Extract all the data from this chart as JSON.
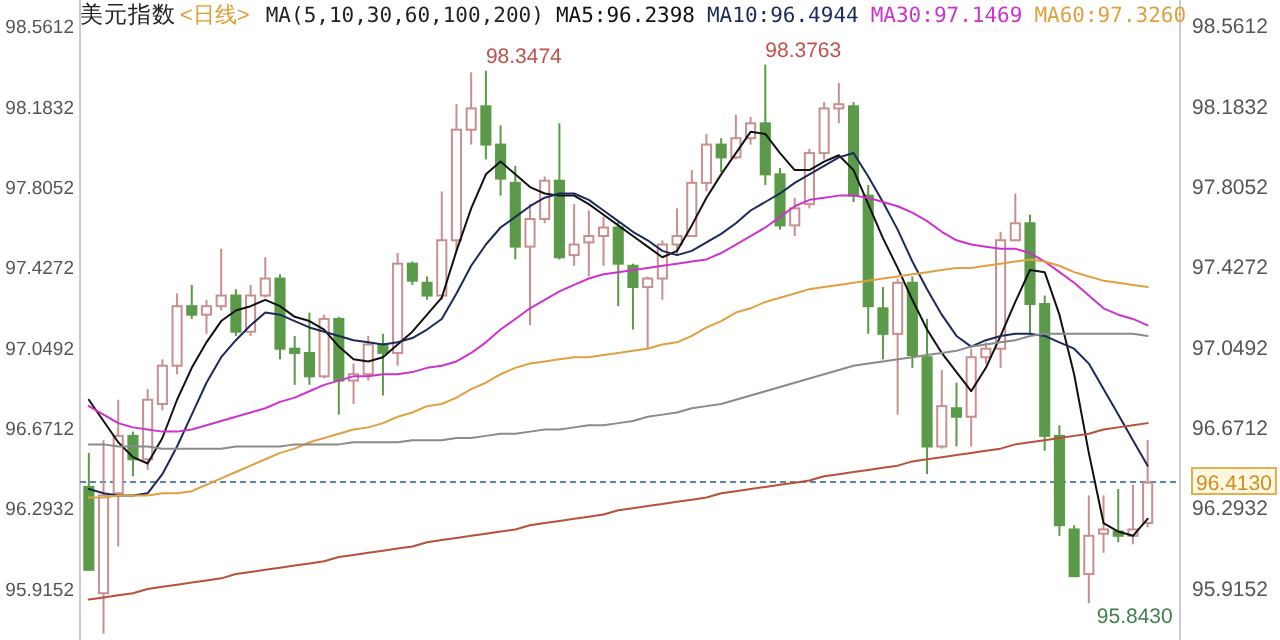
{
  "chart_data": {
    "type": "candlestick",
    "title": "美元指数",
    "subtitle": "<日线>",
    "categories": [
      null,
      null,
      null,
      null,
      null,
      null,
      null,
      null,
      null,
      null,
      null,
      null,
      null,
      null,
      null,
      null,
      null,
      null,
      null,
      null,
      null,
      null,
      null,
      null,
      null,
      null,
      null,
      null,
      null,
      null,
      null,
      null,
      null,
      null,
      null,
      null,
      null,
      null,
      null,
      null,
      null,
      null,
      null,
      null,
      null,
      null,
      null,
      null,
      null,
      null,
      null,
      null,
      null,
      null,
      null,
      null,
      null,
      null,
      null,
      null,
      null,
      null,
      null,
      null,
      null,
      null,
      null,
      null,
      null,
      null,
      null,
      null,
      null
    ],
    "ohlc": [
      [
        96.39,
        96.55,
        96.0,
        96.0
      ],
      [
        95.89,
        96.61,
        95.7,
        96.35
      ],
      [
        96.36,
        96.8,
        96.11,
        96.63
      ],
      [
        96.63,
        96.65,
        96.44,
        96.52
      ],
      [
        96.52,
        96.85,
        96.47,
        96.8
      ],
      [
        96.78,
        96.99,
        96.75,
        96.96
      ],
      [
        96.96,
        97.3,
        96.92,
        97.24
      ],
      [
        97.24,
        97.34,
        97.18,
        97.2
      ],
      [
        97.2,
        97.27,
        97.11,
        97.24
      ],
      [
        97.24,
        97.51,
        97.22,
        97.29
      ],
      [
        97.29,
        97.32,
        97.1,
        97.12
      ],
      [
        97.12,
        97.34,
        97.1,
        97.29
      ],
      [
        97.29,
        97.47,
        97.28,
        97.37
      ],
      [
        97.37,
        97.39,
        96.99,
        97.04
      ],
      [
        97.04,
        97.1,
        96.87,
        97.02
      ],
      [
        97.02,
        97.21,
        96.87,
        96.91
      ],
      [
        96.91,
        97.2,
        96.9,
        97.18
      ],
      [
        97.18,
        97.19,
        96.73,
        96.89
      ],
      [
        96.89,
        96.97,
        96.78,
        96.92
      ],
      [
        96.92,
        97.1,
        96.89,
        97.06
      ],
      [
        97.06,
        97.11,
        96.82,
        97.02
      ],
      [
        97.02,
        97.49,
        96.96,
        97.44
      ],
      [
        97.44,
        97.45,
        97.34,
        97.36
      ],
      [
        97.35,
        97.38,
        97.27,
        97.29
      ],
      [
        97.29,
        97.78,
        97.27,
        97.55
      ],
      [
        97.55,
        98.19,
        97.5,
        98.07
      ],
      [
        98.07,
        98.34,
        98.0,
        98.17
      ],
      [
        98.18,
        98.3474,
        97.93,
        98.0
      ],
      [
        98.0,
        98.09,
        97.76,
        97.84
      ],
      [
        97.82,
        97.9,
        97.46,
        97.52
      ],
      [
        97.52,
        97.72,
        97.15,
        97.65
      ],
      [
        97.65,
        97.85,
        97.63,
        97.83
      ],
      [
        97.83,
        98.1,
        97.46,
        97.47
      ],
      [
        97.48,
        97.72,
        97.43,
        97.53
      ],
      [
        97.54,
        97.69,
        97.38,
        97.57
      ],
      [
        97.57,
        97.66,
        97.43,
        97.61
      ],
      [
        97.61,
        97.64,
        97.24,
        97.44
      ],
      [
        97.43,
        97.44,
        97.13,
        97.33
      ],
      [
        97.33,
        97.38,
        97.04,
        97.37
      ],
      [
        97.37,
        97.55,
        97.27,
        97.53
      ],
      [
        97.53,
        97.7,
        97.48,
        97.57
      ],
      [
        97.57,
        97.88,
        97.57,
        97.82
      ],
      [
        97.82,
        98.05,
        97.78,
        98.0
      ],
      [
        98.0,
        98.03,
        97.87,
        97.94
      ],
      [
        97.94,
        98.14,
        97.93,
        98.03
      ],
      [
        98.03,
        98.13,
        98.0,
        98.1
      ],
      [
        98.1,
        98.3763,
        97.81,
        97.86
      ],
      [
        97.86,
        97.89,
        97.6,
        97.62
      ],
      [
        97.62,
        97.75,
        97.57,
        97.7
      ],
      [
        97.72,
        97.98,
        97.7,
        97.96
      ],
      [
        97.96,
        98.2,
        97.93,
        98.17
      ],
      [
        98.17,
        98.29,
        98.1,
        98.19
      ],
      [
        98.18,
        98.2,
        97.73,
        97.76
      ],
      [
        97.76,
        97.81,
        97.11,
        97.24
      ],
      [
        97.23,
        97.33,
        96.99,
        97.11
      ],
      [
        97.11,
        97.37,
        96.73,
        97.35
      ],
      [
        97.35,
        97.38,
        96.95,
        97.01
      ],
      [
        97.0,
        97.18,
        96.45,
        96.58
      ],
      [
        96.58,
        96.94,
        96.57,
        96.77
      ],
      [
        96.76,
        96.88,
        96.58,
        96.72
      ],
      [
        96.72,
        97.04,
        96.58,
        97.0
      ],
      [
        97.0,
        97.07,
        96.97,
        97.04
      ],
      [
        97.04,
        97.59,
        96.95,
        97.55
      ],
      [
        97.55,
        97.77,
        97.55,
        97.63
      ],
      [
        97.63,
        97.67,
        97.11,
        97.25
      ],
      [
        97.25,
        97.29,
        96.56,
        96.63
      ],
      [
        96.63,
        96.68,
        96.16,
        96.21
      ],
      [
        96.19,
        96.21,
        95.97,
        95.97
      ],
      [
        95.98,
        96.35,
        95.843,
        96.16
      ],
      [
        96.17,
        96.35,
        96.08,
        96.19
      ],
      [
        96.18,
        96.38,
        96.13,
        96.16
      ],
      [
        96.16,
        96.4,
        96.12,
        96.19
      ],
      [
        96.22,
        96.61,
        96.2,
        96.41
      ]
    ],
    "series": [
      {
        "name": "MA5:96.2398",
        "type": "line",
        "color": "#111111",
        "values": [
          96.8,
          96.7,
          96.6,
          96.53,
          96.5,
          96.62,
          96.8,
          96.95,
          97.07,
          97.17,
          97.22,
          97.24,
          97.27,
          97.24,
          97.19,
          97.17,
          97.13,
          97.05,
          96.99,
          96.98,
          97.0,
          97.06,
          97.12,
          97.2,
          97.28,
          97.5,
          97.7,
          97.86,
          97.92,
          97.86,
          97.8,
          97.77,
          97.76,
          97.76,
          97.72,
          97.67,
          97.62,
          97.57,
          97.52,
          97.47,
          97.5,
          97.62,
          97.75,
          97.86,
          97.96,
          98.06,
          98.05,
          97.96,
          97.88,
          97.88,
          97.92,
          97.95,
          97.88,
          97.72,
          97.56,
          97.42,
          97.27,
          97.13,
          97.02,
          96.93,
          96.84,
          96.95,
          97.1,
          97.26,
          97.41,
          97.4,
          97.2,
          96.92,
          96.55,
          96.22,
          96.18,
          96.16,
          96.24
        ]
      },
      {
        "name": "MA10:96.4944",
        "type": "line",
        "color": "#1c2a5a",
        "values": [
          96.38,
          96.36,
          96.35,
          96.35,
          96.36,
          96.45,
          96.58,
          96.73,
          96.88,
          97.0,
          97.08,
          97.15,
          97.21,
          97.2,
          97.17,
          97.14,
          97.12,
          97.1,
          97.08,
          97.07,
          97.06,
          97.07,
          97.09,
          97.13,
          97.18,
          97.3,
          97.43,
          97.53,
          97.61,
          97.66,
          97.71,
          97.75,
          97.77,
          97.77,
          97.74,
          97.69,
          97.64,
          97.59,
          97.55,
          97.5,
          97.48,
          97.5,
          97.54,
          97.58,
          97.63,
          97.69,
          97.73,
          97.77,
          97.82,
          97.86,
          97.9,
          97.94,
          97.96,
          97.85,
          97.73,
          97.6,
          97.45,
          97.32,
          97.2,
          97.1,
          97.05,
          97.08,
          97.1,
          97.11,
          97.11,
          97.1,
          97.07,
          97.04,
          96.97,
          96.85,
          96.73,
          96.61,
          96.49
        ]
      },
      {
        "name": "MA30:97.1469",
        "type": "line",
        "color": "#cc33cc",
        "values": [
          96.77,
          96.73,
          96.69,
          96.67,
          96.66,
          96.65,
          96.65,
          96.66,
          96.68,
          96.7,
          96.72,
          96.74,
          96.76,
          96.79,
          96.81,
          96.84,
          96.87,
          96.89,
          96.91,
          96.91,
          96.92,
          96.92,
          96.93,
          96.95,
          96.96,
          96.98,
          97.02,
          97.07,
          97.13,
          97.18,
          97.23,
          97.27,
          97.31,
          97.34,
          97.37,
          97.39,
          97.4,
          97.41,
          97.42,
          97.43,
          97.44,
          97.45,
          97.46,
          97.49,
          97.53,
          97.57,
          97.61,
          97.66,
          97.71,
          97.74,
          97.75,
          97.76,
          97.76,
          97.75,
          97.73,
          97.71,
          97.68,
          97.64,
          97.59,
          97.55,
          97.53,
          97.52,
          97.51,
          97.51,
          97.49,
          97.45,
          97.4,
          97.35,
          97.29,
          97.23,
          97.2,
          97.18,
          97.15
        ]
      },
      {
        "name": "MA60:97.3260",
        "type": "line",
        "color": "#e0a040",
        "values": [
          96.34,
          96.34,
          96.35,
          96.35,
          96.35,
          96.36,
          96.36,
          96.37,
          96.4,
          96.43,
          96.46,
          96.49,
          96.52,
          96.55,
          96.57,
          96.6,
          96.62,
          96.64,
          96.66,
          96.67,
          96.69,
          96.72,
          96.74,
          96.77,
          96.78,
          96.81,
          96.85,
          96.88,
          96.92,
          96.95,
          96.97,
          96.98,
          96.99,
          97.0,
          97.0,
          97.01,
          97.02,
          97.03,
          97.04,
          97.06,
          97.07,
          97.1,
          97.14,
          97.17,
          97.21,
          97.23,
          97.26,
          97.28,
          97.3,
          97.32,
          97.33,
          97.34,
          97.35,
          97.36,
          97.37,
          97.38,
          97.39,
          97.4,
          97.41,
          97.42,
          97.42,
          97.43,
          97.44,
          97.45,
          97.46,
          97.45,
          97.43,
          97.4,
          97.38,
          97.36,
          97.35,
          97.34,
          97.33
        ]
      },
      {
        "type": "line",
        "color": "#8a8a8a",
        "values": [
          96.59,
          96.59,
          96.58,
          96.58,
          96.58,
          96.57,
          96.57,
          96.57,
          96.57,
          96.57,
          96.58,
          96.58,
          96.58,
          96.58,
          96.59,
          96.59,
          96.59,
          96.59,
          96.6,
          96.6,
          96.6,
          96.6,
          96.61,
          96.61,
          96.61,
          96.62,
          96.62,
          96.63,
          96.64,
          96.64,
          96.65,
          96.66,
          96.66,
          96.67,
          96.68,
          96.68,
          96.69,
          96.7,
          96.72,
          96.73,
          96.74,
          96.76,
          96.77,
          96.78,
          96.8,
          96.82,
          96.84,
          96.86,
          96.88,
          96.9,
          96.92,
          96.94,
          96.96,
          96.97,
          96.98,
          96.99,
          97.0,
          97.01,
          97.02,
          97.03,
          97.05,
          97.06,
          97.07,
          97.08,
          97.1,
          97.11,
          97.11,
          97.11,
          97.11,
          97.11,
          97.11,
          97.11,
          97.1
        ]
      },
      {
        "type": "line",
        "color": "#b8503a",
        "values": [
          95.86,
          95.87,
          95.88,
          95.89,
          95.91,
          95.92,
          95.93,
          95.94,
          95.95,
          95.96,
          95.98,
          95.99,
          96.0,
          96.01,
          96.02,
          96.03,
          96.04,
          96.06,
          96.07,
          96.08,
          96.09,
          96.1,
          96.11,
          96.13,
          96.14,
          96.15,
          96.16,
          96.17,
          96.18,
          96.19,
          96.21,
          96.22,
          96.23,
          96.24,
          96.25,
          96.26,
          96.28,
          96.29,
          96.3,
          96.31,
          96.32,
          96.33,
          96.34,
          96.36,
          96.37,
          96.38,
          96.39,
          96.4,
          96.41,
          96.42,
          96.44,
          96.45,
          96.46,
          96.47,
          96.48,
          96.49,
          96.51,
          96.52,
          96.53,
          96.54,
          96.55,
          96.56,
          96.57,
          96.59,
          96.6,
          96.61,
          96.62,
          96.63,
          96.64,
          96.66,
          96.67,
          96.68,
          96.69
        ]
      }
    ],
    "ylim": [
      95.67,
      98.68
    ],
    "yticks": [
      98.5612,
      98.1832,
      97.8052,
      97.4272,
      97.0492,
      96.6712,
      96.2932,
      95.9152
    ],
    "y2lim": [
      95.67,
      98.68
    ],
    "y2ticks": [
      98.5612,
      98.1832,
      97.8052,
      97.4272,
      97.0492,
      96.6712,
      96.2932,
      95.9152
    ],
    "ref_lines": [
      {
        "axis": "y2",
        "value": 96.413,
        "label": "96.4130",
        "color": "#5b86b0",
        "line_style": "dashed"
      }
    ],
    "annotations": [
      "MA(5,10,30,60,100,200)",
      "98.3474",
      "98.3763",
      "95.8430"
    ],
    "legend": "top",
    "grid": false
  }
}
